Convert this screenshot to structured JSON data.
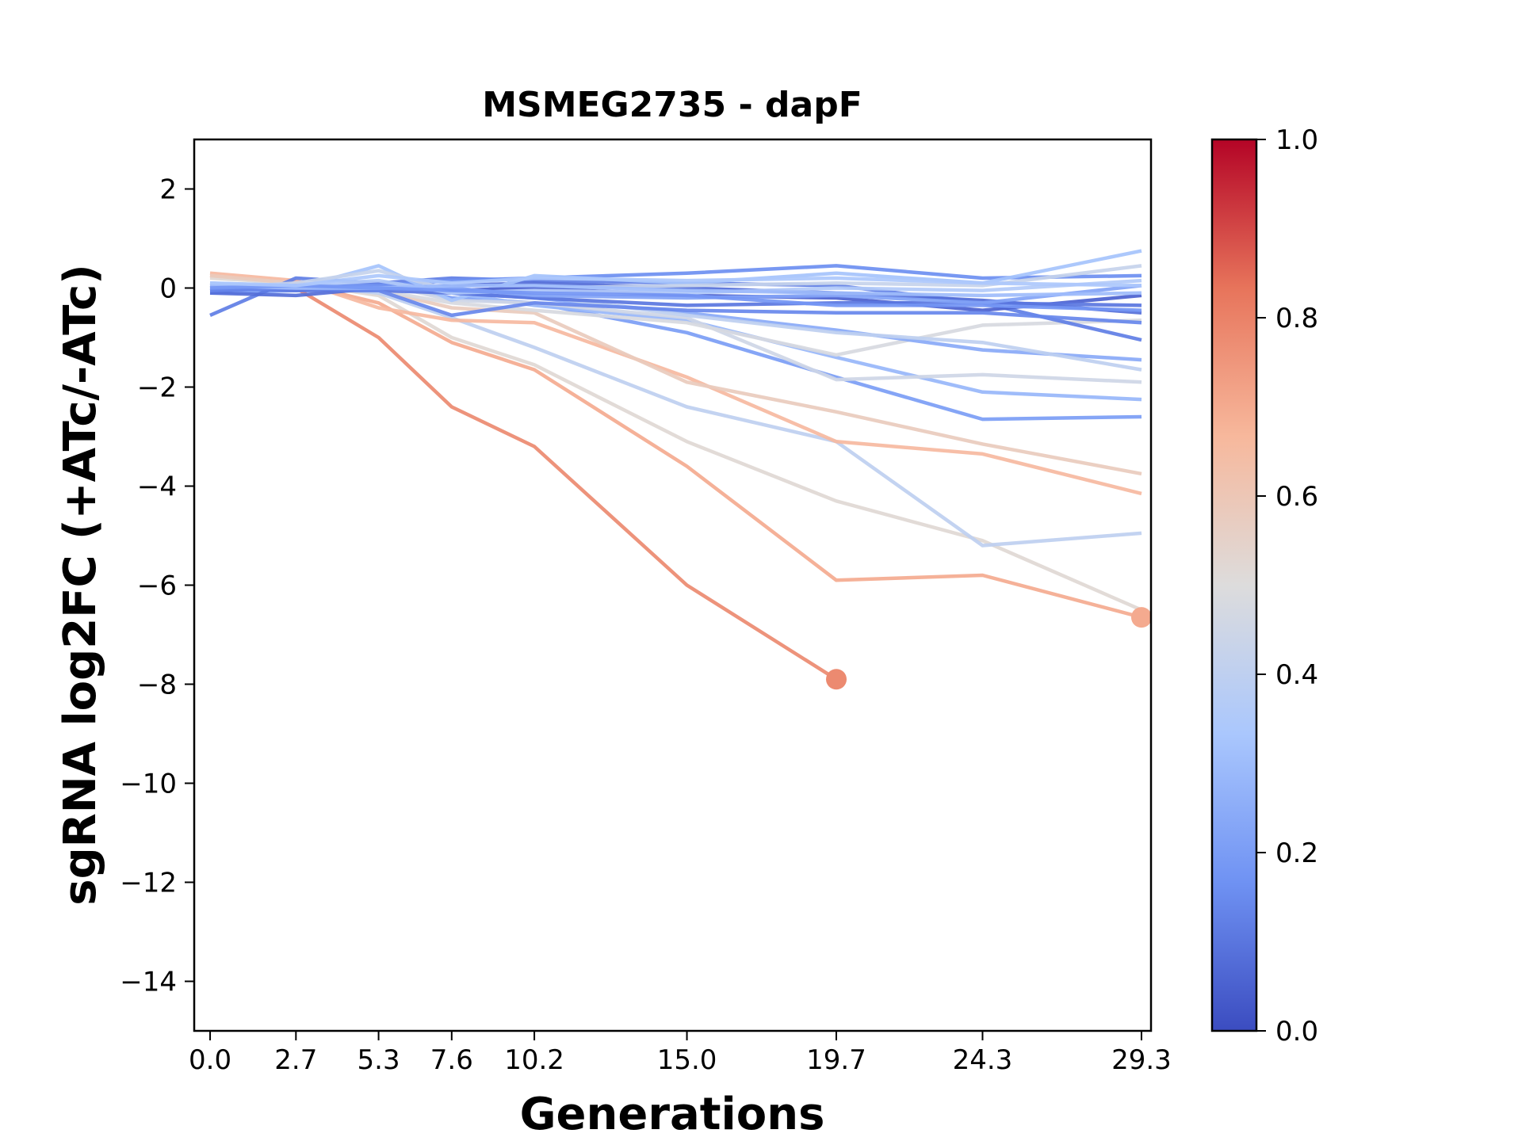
{
  "chart_data": {
    "type": "line",
    "title": "MSMEG2735 - dapF",
    "xlabel": "Generations",
    "ylabel": "sgRNA log2FC (+ATc/-ATc)",
    "xlim": [
      -0.5,
      29.6
    ],
    "ylim": [
      -15,
      3
    ],
    "x_ticks": [
      0.0,
      2.7,
      5.3,
      7.6,
      10.2,
      15.0,
      19.7,
      24.3,
      29.3
    ],
    "x_tick_labels": [
      "0.0",
      "2.7",
      "5.3",
      "7.6",
      "10.2",
      "15.0",
      "19.7",
      "24.3",
      "29.3"
    ],
    "y_ticks": [
      2,
      0,
      -2,
      -4,
      -6,
      -8,
      -10,
      -12,
      -14
    ],
    "y_tick_labels": [
      "2",
      "0",
      "−2",
      "−4",
      "−6",
      "−8",
      "−10",
      "−12",
      "−14"
    ],
    "grid": false,
    "colorbar": {
      "colormap": "coolwarm",
      "range": [
        0.0,
        1.0
      ],
      "ticks": [
        0.0,
        0.2,
        0.4,
        0.6,
        0.8,
        1.0
      ],
      "tick_labels": [
        "0.0",
        "0.2",
        "0.4",
        "0.6",
        "0.8",
        "1.0"
      ],
      "colors": [
        "#3b4cc0",
        "#6f92f3",
        "#aac7fd",
        "#dddcdc",
        "#f7b89c",
        "#e7745b",
        "#b40426"
      ]
    },
    "x": [
      0.0,
      2.7,
      5.3,
      7.6,
      10.2,
      15.0,
      19.7,
      24.3,
      29.3
    ],
    "series": [
      {
        "strength": 0.78,
        "values": [
          0.05,
          0.0,
          -1.0,
          -2.4,
          -3.2,
          -6.0,
          -7.9,
          null,
          null
        ],
        "end_marker": true
      },
      {
        "strength": 0.7,
        "values": [
          0.25,
          0.1,
          -0.3,
          -1.1,
          -1.65,
          -3.6,
          -5.9,
          -5.8,
          -6.65
        ],
        "end_marker": true
      },
      {
        "strength": 0.52,
        "values": [
          0.2,
          0.1,
          -0.15,
          -1.0,
          -1.55,
          -3.1,
          -4.3,
          -5.1,
          -6.5
        ]
      },
      {
        "strength": 0.4,
        "values": [
          0.1,
          0.05,
          -0.1,
          -0.6,
          -1.2,
          -2.4,
          -3.1,
          -5.2,
          -4.95
        ]
      },
      {
        "strength": 0.66,
        "values": [
          0.3,
          0.15,
          -0.4,
          -0.65,
          -0.7,
          -1.8,
          -3.1,
          -3.35,
          -4.15
        ]
      },
      {
        "strength": 0.58,
        "values": [
          0.25,
          0.1,
          -0.05,
          -0.4,
          -0.5,
          -1.9,
          -2.5,
          -3.15,
          -3.75
        ]
      },
      {
        "strength": 0.2,
        "values": [
          -0.1,
          -0.05,
          0.1,
          -0.2,
          -0.3,
          -0.9,
          -1.8,
          -2.65,
          -2.6
        ]
      },
      {
        "strength": 0.28,
        "values": [
          0.0,
          -0.05,
          0.05,
          -0.1,
          -0.35,
          -0.65,
          -1.4,
          -2.1,
          -2.25
        ]
      },
      {
        "strength": 0.45,
        "values": [
          0.1,
          0.0,
          0.1,
          -0.25,
          -0.3,
          -0.6,
          -1.85,
          -1.75,
          -1.9
        ]
      },
      {
        "strength": 0.48,
        "values": [
          0.0,
          0.05,
          -0.05,
          -0.3,
          -0.45,
          -0.7,
          -1.35,
          -0.75,
          -0.65
        ]
      },
      {
        "strength": 0.24,
        "values": [
          0.0,
          0.0,
          0.05,
          -0.1,
          -0.2,
          -0.5,
          -0.85,
          -1.25,
          -1.45
        ]
      },
      {
        "strength": 0.4,
        "values": [
          0.05,
          0.0,
          0.05,
          0.0,
          -0.15,
          -0.55,
          -0.9,
          -1.1,
          -1.65
        ]
      },
      {
        "strength": 0.12,
        "values": [
          -0.55,
          0.2,
          0.1,
          0.2,
          0.15,
          0.1,
          0.05,
          -0.3,
          -1.05
        ]
      },
      {
        "strength": 0.08,
        "values": [
          -0.1,
          -0.15,
          0.0,
          0.05,
          0.1,
          0.0,
          -0.1,
          -0.25,
          -0.5
        ]
      },
      {
        "strength": 0.16,
        "values": [
          0.0,
          0.05,
          0.05,
          0.15,
          0.2,
          0.3,
          0.45,
          0.2,
          0.25
        ]
      },
      {
        "strength": 0.32,
        "values": [
          0.1,
          0.0,
          0.45,
          -0.25,
          0.25,
          0.1,
          0.3,
          0.1,
          0.75
        ]
      },
      {
        "strength": 0.42,
        "values": [
          0.0,
          0.1,
          0.35,
          -0.05,
          0.0,
          0.05,
          0.1,
          0.05,
          0.45
        ]
      },
      {
        "strength": 0.05,
        "values": [
          -0.05,
          0.0,
          0.0,
          -0.05,
          0.0,
          -0.15,
          -0.2,
          -0.45,
          -0.15
        ]
      },
      {
        "strength": 0.1,
        "values": [
          0.0,
          -0.05,
          -0.05,
          -0.1,
          -0.2,
          -0.35,
          -0.3,
          -0.3,
          -0.35
        ]
      },
      {
        "strength": 0.22,
        "values": [
          0.05,
          0.05,
          0.0,
          0.0,
          -0.15,
          -0.2,
          -0.15,
          -0.3,
          0.05
        ]
      },
      {
        "strength": 0.36,
        "values": [
          0.0,
          0.05,
          0.15,
          -0.1,
          -0.05,
          -0.1,
          0.0,
          -0.05,
          0.15
        ]
      },
      {
        "strength": 0.14,
        "values": [
          -0.05,
          0.0,
          -0.05,
          -0.55,
          -0.3,
          -0.45,
          -0.5,
          -0.5,
          -0.7
        ]
      },
      {
        "strength": 0.3,
        "values": [
          0.05,
          0.0,
          0.0,
          0.05,
          0.05,
          -0.05,
          -0.1,
          -0.15,
          -0.1
        ]
      },
      {
        "strength": 0.18,
        "values": [
          0.0,
          0.05,
          0.0,
          -0.05,
          -0.1,
          -0.15,
          -0.35,
          -0.35,
          -0.45
        ]
      },
      {
        "strength": 0.34,
        "values": [
          0.1,
          0.05,
          0.25,
          0.1,
          0.2,
          0.15,
          0.2,
          0.1,
          0.05
        ]
      }
    ]
  }
}
